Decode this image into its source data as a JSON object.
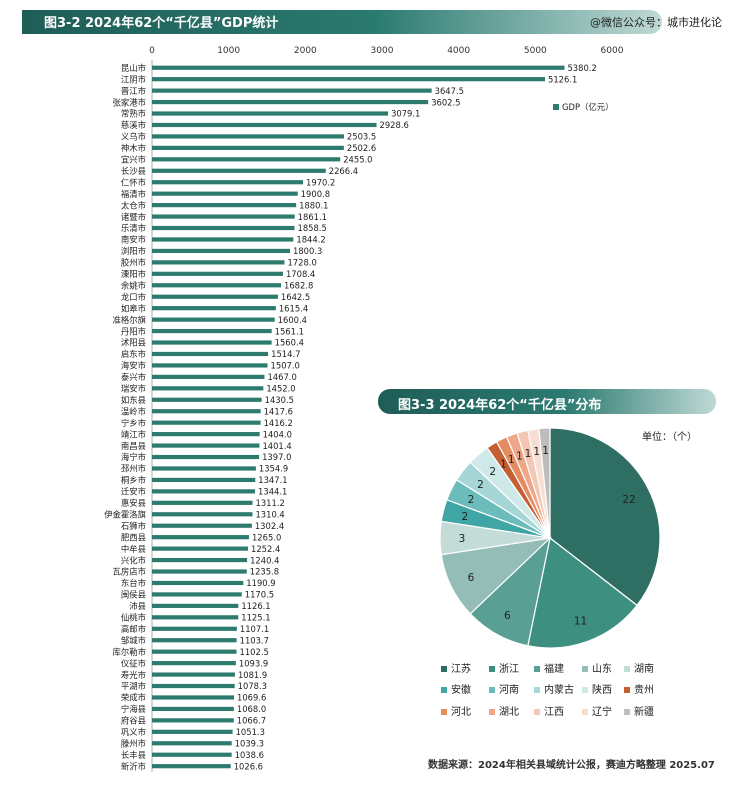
{
  "header": {
    "title": "图3-2  2024年62个“千亿县”GDP统计",
    "source_tag": "@微信公众号：城市进化论"
  },
  "chart_data": [
    {
      "type": "bar",
      "orientation": "horizontal",
      "title": "图3-2  2024年62个“千亿县”GDP统计",
      "legend": [
        "GDP（亿元）"
      ],
      "legend_position": "top-right",
      "xlim": [
        0,
        6000
      ],
      "xticks": [
        "0",
        "1000",
        "2000",
        "3000",
        "4000",
        "5000",
        "6000"
      ],
      "color": "#2d7a6e",
      "categories": [
        "昆山市",
        "江阴市",
        "晋江市",
        "张家港市",
        "常熟市",
        "慈溪市",
        "义乌市",
        "神木市",
        "宜兴市",
        "长沙县",
        "仁怀市",
        "福清市",
        "太仓市",
        "诸暨市",
        "乐清市",
        "南安市",
        "浏阳市",
        "胶州市",
        "溧阳市",
        "余姚市",
        "龙口市",
        "如皋市",
        "准格尔旗",
        "丹阳市",
        "沭阳县",
        "启东市",
        "海安市",
        "泰兴市",
        "瑞安市",
        "如东县",
        "温岭市",
        "宁乡市",
        "靖江市",
        "南昌县",
        "海宁市",
        "邳州市",
        "桐乡市",
        "迁安市",
        "惠安县",
        "伊金霍洛旗",
        "石狮市",
        "肥西县",
        "中牟县",
        "兴化市",
        "瓦房店市",
        "东台市",
        "闽侯县",
        "沛县",
        "仙桃市",
        "高邮市",
        "邹城市",
        "库尔勒市",
        "仪征市",
        "寿光市",
        "平湖市",
        "荣成市",
        "宁海县",
        "府谷县",
        "巩义市",
        "滕州市",
        "长丰县",
        "新沂市"
      ],
      "values": [
        5380.2,
        5126.1,
        3647.5,
        3602.5,
        3079.1,
        2928.6,
        2503.5,
        2502.6,
        2455.0,
        2266.4,
        1970.2,
        1900.8,
        1880.1,
        1861.1,
        1858.5,
        1844.2,
        1800.3,
        1728.0,
        1708.4,
        1682.8,
        1642.5,
        1615.4,
        1600.4,
        1561.1,
        1560.4,
        1514.7,
        1507.0,
        1467.0,
        1452.0,
        1430.5,
        1417.6,
        1416.2,
        1404.0,
        1401.4,
        1397.0,
        1354.9,
        1347.1,
        1344.1,
        1311.2,
        1310.4,
        1302.4,
        1265.0,
        1252.4,
        1240.4,
        1235.8,
        1190.9,
        1170.5,
        1126.1,
        1125.1,
        1107.1,
        1103.7,
        1102.5,
        1093.9,
        1081.9,
        1078.3,
        1069.6,
        1068.0,
        1066.7,
        1051.3,
        1039.3,
        1038.6,
        1026.6
      ],
      "value_labels": [
        "5380.2",
        "5126.1",
        "3647.5",
        "3602.5",
        "3079.1",
        "2928.6",
        "2503.5",
        "2502.6",
        "2455.0",
        "2266.4",
        "1970.2",
        "1900.8",
        "1880.1",
        "1861.1",
        "1858.5",
        "1844.2",
        "1800.3",
        "1728.0",
        "1708.4",
        "1682.8",
        "1642.5",
        "1615.4",
        "1600.4",
        "1561.1",
        "1560.4",
        "1514.7",
        "1507.0",
        "1467.0",
        "1452.0",
        "1430.5",
        "1417.6",
        "1416.2",
        "1404.0",
        "1401.4",
        "1397.0",
        "1354.9",
        "1347.1",
        "1344.1",
        "1311.2",
        "1310.4",
        "1302.4",
        "1265.0",
        "1252.4",
        "1240.4",
        "1235.8",
        "1190.9",
        "1170.5",
        "1126.1",
        "1125.1",
        "1107.1",
        "1103.7",
        "1102.5",
        "1093.9",
        "1081.9",
        "1078.3",
        "1069.6",
        "1068.0",
        "1066.7",
        "1051.3",
        "1039.3",
        "1038.6",
        "1026.6"
      ]
    },
    {
      "type": "pie",
      "title": "图3-3  2024年62个“千亿县”分布",
      "unit": "单位：（个）",
      "legend_position": "bottom",
      "categories": [
        "江苏",
        "浙江",
        "福建",
        "山东",
        "湖南",
        "安徽",
        "河南",
        "内蒙古",
        "陕西",
        "贵州",
        "河北",
        "湖北",
        "江西",
        "辽宁",
        "新疆"
      ],
      "values": [
        22,
        11,
        6,
        6,
        3,
        2,
        2,
        2,
        2,
        1,
        1,
        1,
        1,
        1,
        1
      ],
      "colors": [
        "#2f6f63",
        "#3d8f7f",
        "#5a9f93",
        "#93bdb6",
        "#c4dcd7",
        "#3fa5a5",
        "#6cbcbc",
        "#a6d6d6",
        "#cfe9e9",
        "#c45f33",
        "#e58b62",
        "#eea789",
        "#f3c7b3",
        "#f7ded2",
        "#bdbdbd"
      ]
    }
  ],
  "pie_header": {
    "title": "图3-3  2024年62个“千亿县”分布",
    "unit": "单位：（个）"
  },
  "footnote": "数据来源：2024年相关县域统计公报，赛迪方略整理 2025.07"
}
